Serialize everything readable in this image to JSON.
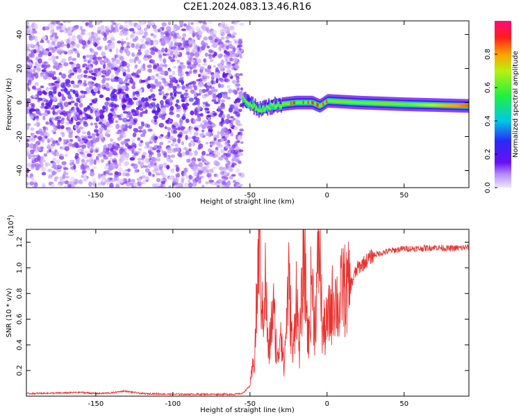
{
  "title": "C2E1.2024.083.13.46.R16",
  "colors": {
    "snr_line": "#e8322e",
    "axis": "#000000",
    "background": "#ffffff"
  },
  "chart_data": [
    {
      "type": "heatmap",
      "xlabel": "Height of straight line (km)",
      "ylabel": "Frequency (Hz)",
      "xlim": [
        -195,
        92
      ],
      "ylim": [
        -50,
        48
      ],
      "x_ticks": [
        -150,
        -100,
        -50,
        0,
        50
      ],
      "x_tick_labels": [
        "-150",
        "-100",
        "-50",
        "0",
        "50"
      ],
      "y_ticks": [
        -40,
        -20,
        0,
        20,
        40
      ],
      "y_tick_labels": [
        "-40",
        "-20",
        "0",
        "20",
        "40"
      ],
      "colorbar": {
        "label": "Normalized spectral amplitude",
        "range": [
          0,
          1
        ],
        "ticks": [
          0.0,
          0.2,
          0.4,
          0.6,
          0.8
        ],
        "tick_labels": [
          "0.0",
          "0.2",
          "0.4",
          "0.6",
          "0.8"
        ],
        "colormap": "rainbow"
      },
      "description_values": {
        "noise_region_x": [
          -195,
          -55
        ],
        "signal_region_x": [
          -55,
          92
        ],
        "signal_frequency_hz": [
          {
            "x": -55,
            "f": 2
          },
          {
            "x": -45,
            "f": -4
          },
          {
            "x": -30,
            "f": -1
          },
          {
            "x": -20,
            "f": 0
          },
          {
            "x": -10,
            "f": 0
          },
          {
            "x": -5,
            "f": -2
          },
          {
            "x": 0,
            "f": 1
          },
          {
            "x": 20,
            "f": 0
          },
          {
            "x": 50,
            "f": -1
          },
          {
            "x": 92,
            "f": -2
          }
        ],
        "peak_amplitude_x": [
          -25,
          0
        ]
      }
    },
    {
      "type": "line",
      "xlabel": "Height of straight line (km)",
      "ylabel": "SNR (10 * v/v)",
      "y_multiplier": "(x10",
      "y_multiplier_exp": "4",
      "xlim": [
        -195,
        92
      ],
      "ylim": [
        0,
        1.3
      ],
      "x_ticks": [
        -150,
        -100,
        -50,
        0,
        50
      ],
      "x_tick_labels": [
        "-150",
        "-100",
        "-50",
        "0",
        "50"
      ],
      "y_ticks": [
        0.2,
        0.4,
        0.6,
        0.8,
        1.0,
        1.2
      ],
      "y_tick_labels": [
        "0.2",
        "0.4",
        "0.6",
        "0.8",
        "1.0",
        "1.2"
      ],
      "series": [
        {
          "x": [
            -195,
            -170,
            -160,
            -150,
            -140,
            -132,
            -120,
            -100,
            -80,
            -60,
            -55,
            -50,
            -47,
            -45,
            -44,
            -42,
            -40,
            -38,
            -35,
            -32,
            -30,
            -28,
            -25,
            -22,
            -20,
            -18,
            -15,
            -12,
            -10,
            -8,
            -5,
            -3,
            0,
            3,
            5,
            8,
            10,
            12,
            15,
            18,
            20,
            25,
            30,
            40,
            50,
            60,
            70,
            80,
            92
          ],
          "y": [
            0.02,
            0.025,
            0.03,
            0.02,
            0.025,
            0.04,
            0.02,
            0.015,
            0.015,
            0.015,
            0.02,
            0.08,
            0.3,
            0.9,
            1.3,
            0.6,
            0.9,
            0.3,
            0.7,
            0.25,
            0.6,
            0.2,
            0.9,
            0.3,
            0.85,
            0.35,
            1.1,
            0.4,
            0.95,
            0.55,
            1.2,
            0.5,
            0.55,
            0.7,
            0.8,
            0.65,
            0.9,
            0.8,
            0.85,
            0.95,
            1.0,
            1.05,
            1.1,
            1.13,
            1.15,
            1.15,
            1.16,
            1.15,
            1.16
          ]
        }
      ]
    }
  ]
}
